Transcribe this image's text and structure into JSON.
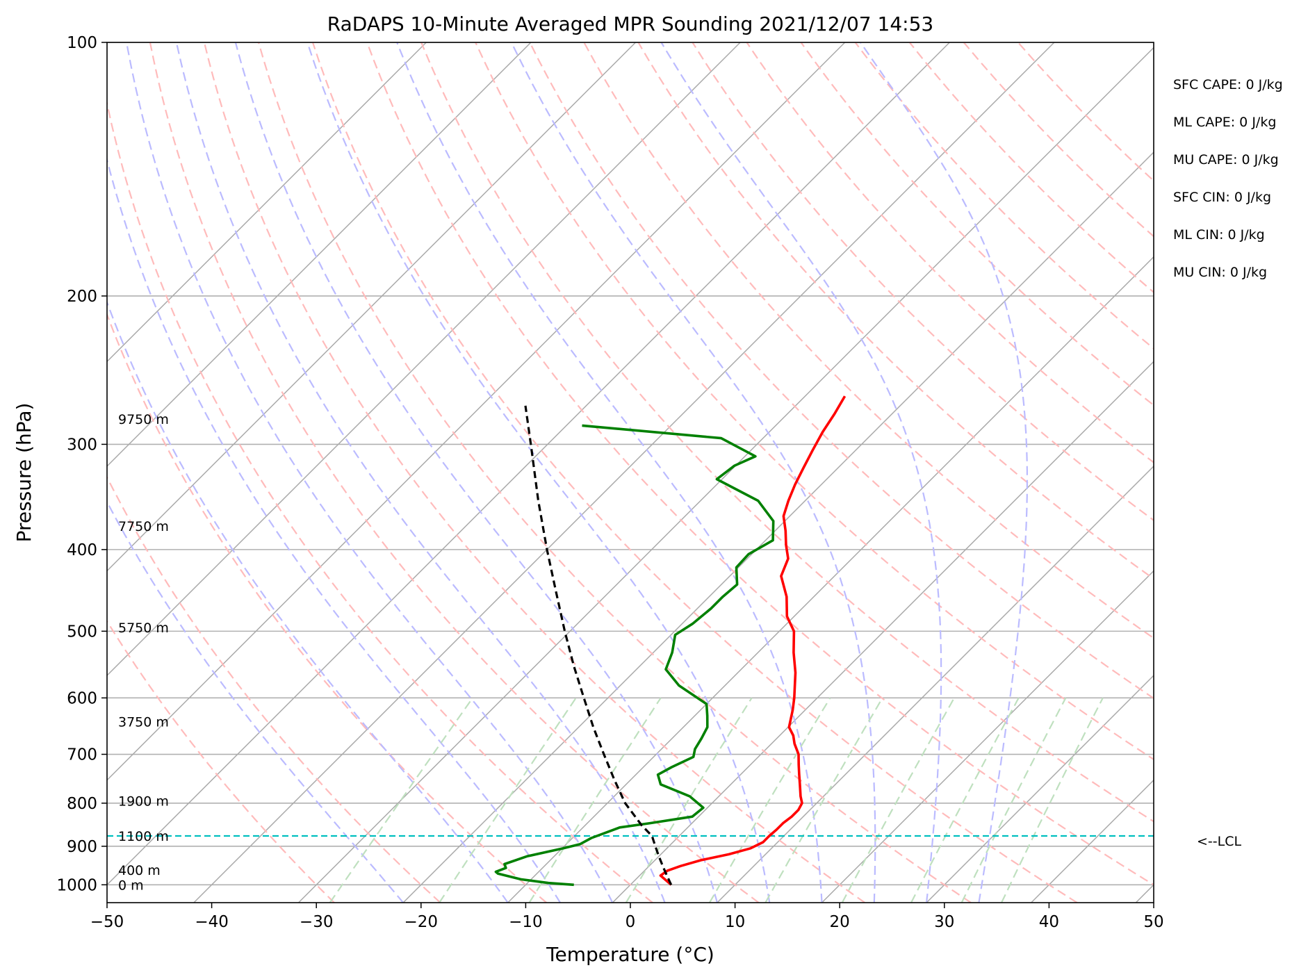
{
  "chart_data": {
    "type": "line",
    "subtype": "skew-t log-p",
    "title": "RaDAPS 10-Minute Averaged MPR Sounding 2021/12/07 14:53",
    "xlabel": "Temperature (°C)",
    "ylabel": "Pressure (hPa)",
    "xlim": [
      -50,
      50
    ],
    "ylim": [
      1050,
      100
    ],
    "yscale": "log",
    "x_ticks": [
      -50,
      -40,
      -30,
      -20,
      -10,
      0,
      10,
      20,
      30,
      40,
      50
    ],
    "x_tick_labels": [
      "−50",
      "−40",
      "−30",
      "−20",
      "−10",
      "0",
      "10",
      "20",
      "30",
      "40",
      "50"
    ],
    "y_ticks": [
      1000,
      900,
      800,
      700,
      600,
      500,
      400,
      300,
      200,
      100
    ],
    "y_tick_labels": [
      "1000",
      "900",
      "800",
      "700",
      "600",
      "500",
      "400",
      "300",
      "200",
      "100"
    ],
    "grid": true,
    "series": [
      {
        "color": "#ff0000",
        "points": [
          [
            1000,
            3.9
          ],
          [
            975,
            2.0
          ],
          [
            962,
            2.2
          ],
          [
            950,
            3.0
          ],
          [
            935,
            4.4
          ],
          [
            920,
            6.5
          ],
          [
            905,
            8.0
          ],
          [
            890,
            8.6
          ],
          [
            875,
            8.6
          ],
          [
            860,
            8.7
          ],
          [
            845,
            8.7
          ],
          [
            830,
            8.9
          ],
          [
            815,
            8.9
          ],
          [
            800,
            8.6
          ],
          [
            785,
            7.8
          ],
          [
            760,
            6.6
          ],
          [
            740,
            5.6
          ],
          [
            720,
            4.6
          ],
          [
            700,
            3.6
          ],
          [
            680,
            2.2
          ],
          [
            665,
            1.3
          ],
          [
            650,
            0.1
          ],
          [
            620,
            -1.2
          ],
          [
            600,
            -2.2
          ],
          [
            560,
            -4.5
          ],
          [
            530,
            -6.6
          ],
          [
            500,
            -8.6
          ],
          [
            480,
            -10.7
          ],
          [
            455,
            -12.6
          ],
          [
            430,
            -15.1
          ],
          [
            410,
            -16.1
          ],
          [
            395,
            -17.6
          ],
          [
            380,
            -19.0
          ],
          [
            365,
            -20.6
          ],
          [
            350,
            -21.6
          ],
          [
            335,
            -22.5
          ],
          [
            320,
            -23.3
          ],
          [
            305,
            -24.1
          ],
          [
            290,
            -24.9
          ],
          [
            276,
            -25.5
          ],
          [
            263,
            -26.2
          ]
        ]
      },
      {
        "color": "#008000",
        "points": [
          [
            1000,
            -5.4
          ],
          [
            995,
            -8.0
          ],
          [
            985,
            -11.0
          ],
          [
            970,
            -13.7
          ],
          [
            965,
            -14.1
          ],
          [
            955,
            -13.5
          ],
          [
            945,
            -14.0
          ],
          [
            925,
            -12.6
          ],
          [
            905,
            -9.9
          ],
          [
            895,
            -8.7
          ],
          [
            880,
            -8.2
          ],
          [
            855,
            -6.5
          ],
          [
            845,
            -4.0
          ],
          [
            830,
            -0.6
          ],
          [
            810,
            -0.4
          ],
          [
            785,
            -2.8
          ],
          [
            760,
            -6.7
          ],
          [
            740,
            -7.9
          ],
          [
            725,
            -7.3
          ],
          [
            705,
            -6.2
          ],
          [
            690,
            -6.8
          ],
          [
            670,
            -7.2
          ],
          [
            650,
            -7.7
          ],
          [
            630,
            -8.8
          ],
          [
            610,
            -10.0
          ],
          [
            580,
            -14.4
          ],
          [
            555,
            -17.2
          ],
          [
            530,
            -18.2
          ],
          [
            505,
            -19.6
          ],
          [
            490,
            -19.0
          ],
          [
            470,
            -18.7
          ],
          [
            455,
            -18.7
          ],
          [
            440,
            -18.5
          ],
          [
            420,
            -20.2
          ],
          [
            405,
            -20.3
          ],
          [
            390,
            -19.3
          ],
          [
            370,
            -21.1
          ],
          [
            350,
            -24.5
          ],
          [
            330,
            -30.5
          ],
          [
            318,
            -30.1
          ],
          [
            310,
            -29.0
          ],
          [
            295,
            -34.0
          ],
          [
            285,
            -48.5
          ]
        ]
      },
      {
        "color": "#000000",
        "dashed": true,
        "points": [
          [
            1000,
            3.9
          ],
          [
            975,
            2.6
          ],
          [
            950,
            1.3
          ],
          [
            925,
            0.0
          ],
          [
            900,
            -1.3
          ],
          [
            875,
            -2.6
          ],
          [
            850,
            -4.6
          ],
          [
            800,
            -8.3
          ],
          [
            750,
            -11.6
          ],
          [
            700,
            -15.0
          ],
          [
            650,
            -18.6
          ],
          [
            600,
            -22.3
          ],
          [
            550,
            -26.3
          ],
          [
            500,
            -30.5
          ],
          [
            450,
            -35.0
          ],
          [
            400,
            -40.0
          ],
          [
            350,
            -45.5
          ],
          [
            300,
            -51.6
          ],
          [
            270,
            -55.8
          ]
        ]
      }
    ],
    "lcl_pressure": 875,
    "lcl_label": "<--LCL",
    "height_labels": [
      {
        "pressure": 1000,
        "text": "0 m"
      },
      {
        "pressure": 960,
        "text": "400 m"
      },
      {
        "pressure": 875,
        "text": "1100 m"
      },
      {
        "pressure": 795,
        "text": "1900 m"
      },
      {
        "pressure": 640,
        "text": "3750 m"
      },
      {
        "pressure": 495,
        "text": "5750 m"
      },
      {
        "pressure": 375,
        "text": "7750 m"
      },
      {
        "pressure": 280,
        "text": "9750 m"
      }
    ],
    "indices": [
      "SFC CAPE: 0 J/kg",
      "ML CAPE: 0 J/kg",
      "MU CAPE: 0 J/kg",
      "SFC CIN: 0 J/kg",
      "ML CIN: 0 J/kg",
      "MU CIN: 0 J/kg"
    ],
    "background_lines": {
      "isotherms": {
        "color": "#aaaaaa",
        "values": [
          -100,
          -90,
          -80,
          -70,
          -60,
          -50,
          -40,
          -30,
          -20,
          -10,
          0,
          10,
          20,
          30,
          40,
          50
        ]
      },
      "dry_adiabats": {
        "color": "#ffbbbb",
        "values": [
          -30,
          -20,
          -10,
          0,
          10,
          20,
          30,
          40,
          50,
          60,
          70,
          80,
          90,
          100,
          110,
          120,
          130,
          140,
          150,
          160,
          170
        ]
      },
      "moist_adiabats": {
        "color": "#bbbbff",
        "values": [
          -20,
          -10,
          -5,
          0,
          5,
          10,
          15,
          20,
          25,
          30,
          35
        ]
      },
      "mixing_ratio": {
        "color": "#bfe0bf",
        "top_pressure": 600,
        "values": [
          0.4,
          1,
          2,
          4,
          7,
          10,
          16,
          24,
          32,
          40
        ]
      }
    }
  }
}
